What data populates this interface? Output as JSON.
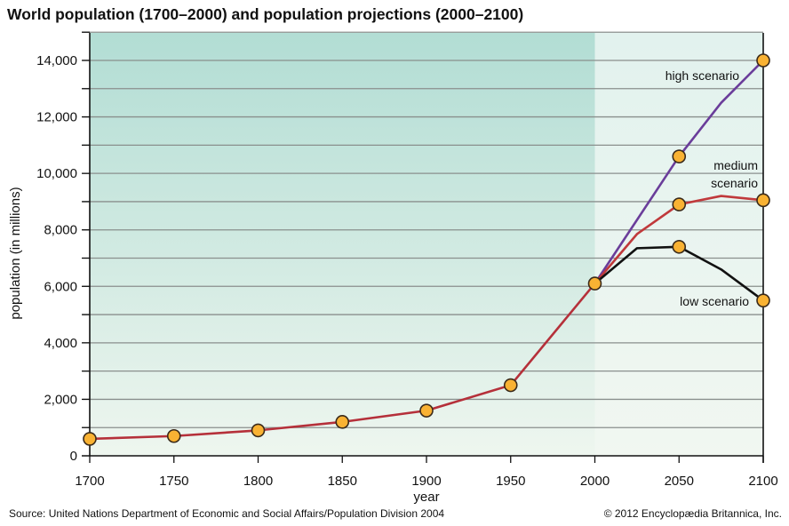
{
  "chart_data": {
    "type": "line",
    "title": "World population (1700–2000) and population projections (2000–2100)",
    "xlabel": "year",
    "ylabel": "population (in millions)",
    "xlim": [
      1700,
      2100
    ],
    "ylim": [
      0,
      15000
    ],
    "x_ticks": [
      1700,
      1750,
      1800,
      1850,
      1900,
      1950,
      2000,
      2050,
      2100
    ],
    "y_ticks": [
      0,
      2000,
      4000,
      6000,
      8000,
      10000,
      12000,
      14000
    ],
    "y_tick_labels": [
      "0",
      "2,000",
      "4,000",
      "6,000",
      "8,000",
      "10,000",
      "12,000",
      "14,000"
    ],
    "grid": "horizontal every 1,000",
    "shaded_regions": [
      {
        "from": 1700,
        "to": 2000,
        "color": "#b2ddd4"
      },
      {
        "from": 2000,
        "to": 2100,
        "color": "#e2f2ee"
      }
    ],
    "marker_color": "#f9b233",
    "series": [
      {
        "key": "historical",
        "color": "#b5303a",
        "points": [
          [
            1700,
            600
          ],
          [
            1750,
            700
          ],
          [
            1800,
            900
          ],
          [
            1850,
            1200
          ],
          [
            1900,
            1600
          ],
          [
            1950,
            2500
          ],
          [
            2000,
            6100
          ]
        ],
        "markers": [
          1700,
          1750,
          1800,
          1850,
          1900,
          1950,
          2000
        ]
      },
      {
        "key": "high",
        "name": "high scenario",
        "color": "#6a3d9a",
        "points": [
          [
            2000,
            6100
          ],
          [
            2050,
            10600
          ],
          [
            2075,
            12500
          ],
          [
            2100,
            14000
          ]
        ],
        "markers": [
          2050,
          2100
        ]
      },
      {
        "key": "medium",
        "name": "medium scenario",
        "name_lines": [
          "medium",
          "scenario"
        ],
        "color": "#c0393b",
        "points": [
          [
            2000,
            6100
          ],
          [
            2025,
            7850
          ],
          [
            2050,
            8900
          ],
          [
            2075,
            9200
          ],
          [
            2100,
            9050
          ]
        ],
        "markers": [
          2050,
          2100
        ]
      },
      {
        "key": "low",
        "name": "low scenario",
        "color": "#111111",
        "points": [
          [
            2000,
            6100
          ],
          [
            2025,
            7350
          ],
          [
            2050,
            7400
          ],
          [
            2075,
            6600
          ],
          [
            2100,
            5500
          ]
        ],
        "markers": [
          2050,
          2100
        ]
      }
    ]
  },
  "footer": {
    "source": "Source: United Nations Department of Economic and Social Affairs/Population Division 2004",
    "copyright": "© 2012 Encyclopædia Britannica, Inc."
  }
}
